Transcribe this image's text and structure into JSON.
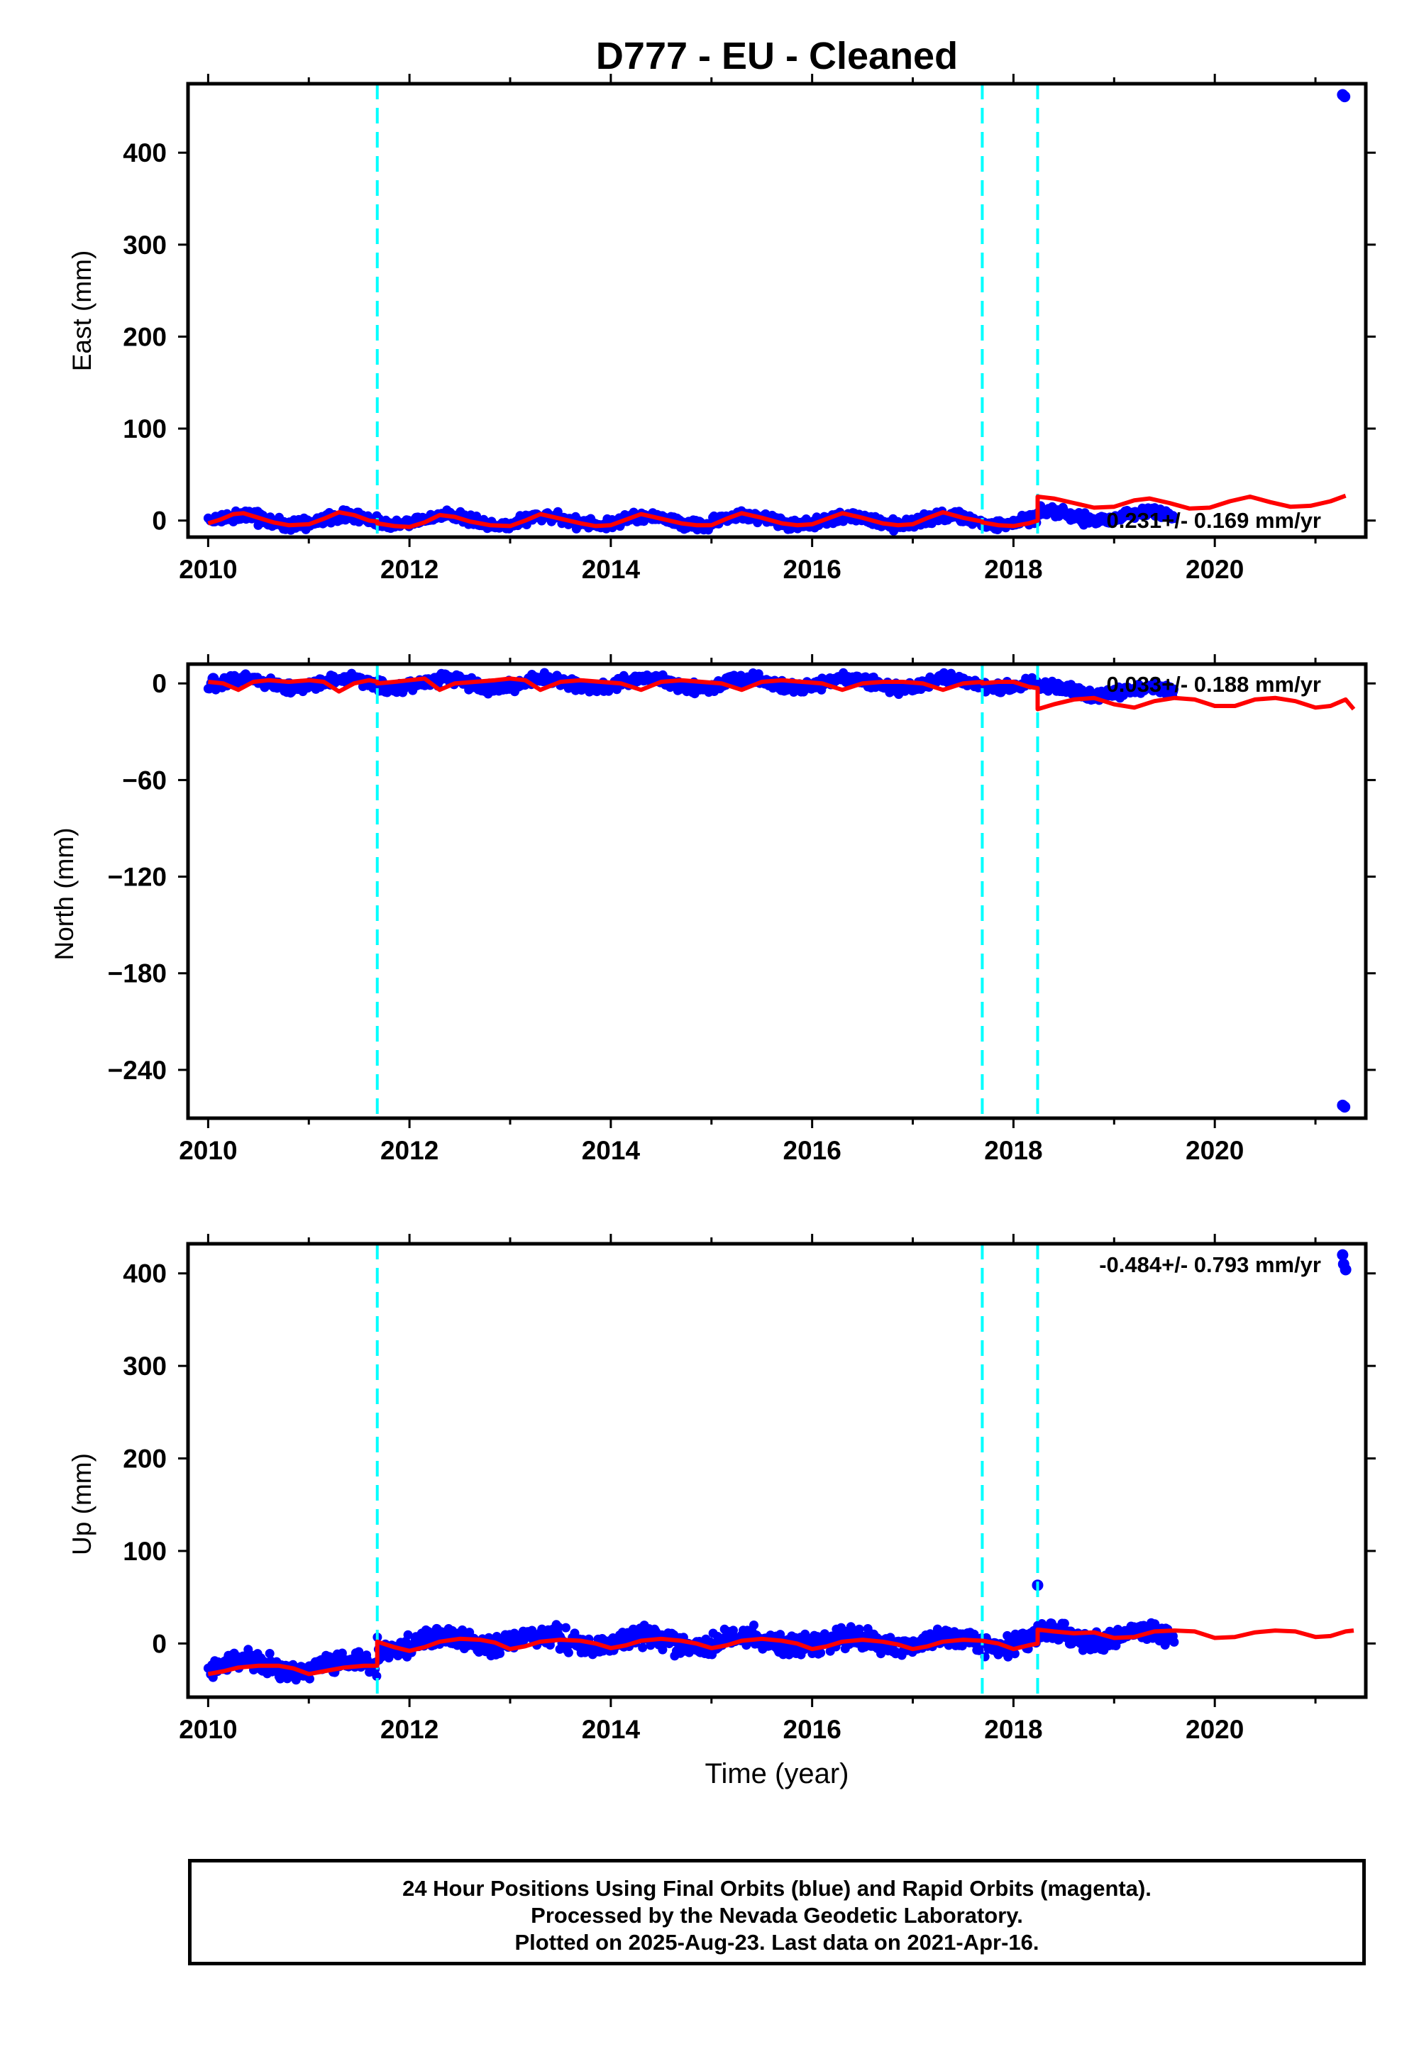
{
  "title": "D777  - EU - Cleaned",
  "xlabel": "Time (year)",
  "colors": {
    "data": "#0000ff",
    "model": "#ff0000",
    "offset": "#00ffff",
    "frame": "#000000"
  },
  "offset_epochs": [
    2011.68,
    2017.69,
    2018.24
  ],
  "chart_data": [
    {
      "type": "scatter",
      "name": "east",
      "ylabel": "East (mm)",
      "xlim": [
        2009.8,
        2021.5
      ],
      "ylim": [
        -18,
        475
      ],
      "xticks": [
        2010,
        2012,
        2014,
        2016,
        2018,
        2020
      ],
      "yticks": [
        0,
        100,
        200,
        300,
        400
      ],
      "velocity_text": "0.231+/- 0.169 mm/yr",
      "model_points": [
        [
          2010.0,
          -3
        ],
        [
          2010.12,
          1
        ],
        [
          2010.25,
          7
        ],
        [
          2010.35,
          8
        ],
        [
          2010.5,
          3
        ],
        [
          2010.65,
          -2
        ],
        [
          2010.8,
          -5
        ],
        [
          2011.0,
          -4
        ],
        [
          2011.15,
          2
        ],
        [
          2011.3,
          9
        ],
        [
          2011.45,
          6
        ],
        [
          2011.6,
          0
        ],
        [
          2011.68,
          -1
        ],
        [
          2011.68,
          -3
        ],
        [
          2011.85,
          -6
        ],
        [
          2012.0,
          -7
        ],
        [
          2012.15,
          -2
        ],
        [
          2012.3,
          6
        ],
        [
          2012.45,
          4
        ],
        [
          2012.6,
          -1
        ],
        [
          2012.8,
          -5
        ],
        [
          2013.0,
          -6
        ],
        [
          2013.15,
          0
        ],
        [
          2013.3,
          7
        ],
        [
          2013.5,
          2
        ],
        [
          2013.7,
          -3
        ],
        [
          2013.85,
          -6
        ],
        [
          2014.0,
          -5
        ],
        [
          2014.15,
          1
        ],
        [
          2014.3,
          7
        ],
        [
          2014.5,
          2
        ],
        [
          2014.7,
          -3
        ],
        [
          2014.85,
          -5
        ],
        [
          2015.0,
          -5
        ],
        [
          2015.15,
          2
        ],
        [
          2015.3,
          8
        ],
        [
          2015.5,
          3
        ],
        [
          2015.7,
          -3
        ],
        [
          2015.85,
          -5
        ],
        [
          2016.0,
          -4
        ],
        [
          2016.15,
          2
        ],
        [
          2016.3,
          8
        ],
        [
          2016.5,
          3
        ],
        [
          2016.7,
          -3
        ],
        [
          2016.85,
          -5
        ],
        [
          2017.0,
          -4
        ],
        [
          2017.15,
          3
        ],
        [
          2017.3,
          9
        ],
        [
          2017.5,
          3
        ],
        [
          2017.69,
          -1
        ],
        [
          2017.69,
          -2
        ],
        [
          2017.85,
          -5
        ],
        [
          2018.0,
          -6
        ],
        [
          2018.15,
          -3
        ],
        [
          2018.24,
          0
        ],
        [
          2018.24,
          26
        ],
        [
          2018.4,
          24
        ],
        [
          2018.6,
          19
        ],
        [
          2018.8,
          14
        ],
        [
          2019.0,
          15
        ],
        [
          2019.2,
          22
        ],
        [
          2019.35,
          24
        ],
        [
          2019.55,
          19
        ],
        [
          2019.75,
          13
        ],
        [
          2019.95,
          14
        ],
        [
          2020.15,
          21
        ],
        [
          2020.35,
          26
        ],
        [
          2020.55,
          20
        ],
        [
          2020.75,
          15
        ],
        [
          2020.95,
          16
        ],
        [
          2021.15,
          21
        ],
        [
          2021.3,
          27
        ]
      ],
      "data_band": {
        "x": [
          2010.0,
          2019.6
        ],
        "offset_mm": [
          [
            2011.68,
            0
          ],
          [
            2018.24,
            5
          ]
        ],
        "spread_mm": 7,
        "seasonal_amp_mm": 5
      },
      "outliers": [
        [
          2021.27,
          463
        ],
        [
          2021.29,
          461
        ]
      ]
    },
    {
      "type": "scatter",
      "name": "north",
      "ylabel": "North (mm)",
      "xlim": [
        2009.8,
        2021.5
      ],
      "ylim": [
        -270,
        12
      ],
      "xticks": [
        2010,
        2012,
        2014,
        2016,
        2018,
        2020
      ],
      "yticks": [
        0,
        -60,
        -120,
        -180,
        -240
      ],
      "ytick_labels": [
        "0",
        "−60",
        "−120",
        "−180",
        "−240"
      ],
      "velocity_text": "0.033+/- 0.188 mm/yr",
      "model_points": [
        [
          2010.0,
          1
        ],
        [
          2010.15,
          0
        ],
        [
          2010.3,
          -4
        ],
        [
          2010.45,
          1
        ],
        [
          2010.6,
          2
        ],
        [
          2010.8,
          1
        ],
        [
          2011.0,
          2
        ],
        [
          2011.15,
          1
        ],
        [
          2011.3,
          -5
        ],
        [
          2011.45,
          0
        ],
        [
          2011.6,
          2
        ],
        [
          2011.68,
          1
        ],
        [
          2011.68,
          0
        ],
        [
          2011.85,
          1
        ],
        [
          2012.0,
          2
        ],
        [
          2012.15,
          3
        ],
        [
          2012.3,
          -4
        ],
        [
          2012.45,
          0
        ],
        [
          2012.65,
          1
        ],
        [
          2012.85,
          2
        ],
        [
          2013.0,
          3
        ],
        [
          2013.15,
          2
        ],
        [
          2013.3,
          -4
        ],
        [
          2013.5,
          1
        ],
        [
          2013.7,
          2
        ],
        [
          2013.9,
          1
        ],
        [
          2014.1,
          0
        ],
        [
          2014.3,
          -4
        ],
        [
          2014.5,
          1
        ],
        [
          2014.7,
          2
        ],
        [
          2014.9,
          1
        ],
        [
          2015.1,
          0
        ],
        [
          2015.3,
          -4
        ],
        [
          2015.5,
          1
        ],
        [
          2015.7,
          2
        ],
        [
          2015.9,
          1
        ],
        [
          2016.1,
          0
        ],
        [
          2016.3,
          -4
        ],
        [
          2016.5,
          0
        ],
        [
          2016.7,
          1
        ],
        [
          2016.9,
          1
        ],
        [
          2017.1,
          0
        ],
        [
          2017.3,
          -4
        ],
        [
          2017.5,
          0
        ],
        [
          2017.69,
          1
        ],
        [
          2017.69,
          0
        ],
        [
          2017.85,
          1
        ],
        [
          2018.0,
          1
        ],
        [
          2018.15,
          -2
        ],
        [
          2018.24,
          -3
        ],
        [
          2018.24,
          -16
        ],
        [
          2018.4,
          -13
        ],
        [
          2018.6,
          -10
        ],
        [
          2018.8,
          -9
        ],
        [
          2019.0,
          -13
        ],
        [
          2019.2,
          -15
        ],
        [
          2019.4,
          -11
        ],
        [
          2019.6,
          -9
        ],
        [
          2019.8,
          -10
        ],
        [
          2020.0,
          -14
        ],
        [
          2020.2,
          -14
        ],
        [
          2020.4,
          -10
        ],
        [
          2020.6,
          -9
        ],
        [
          2020.8,
          -11
        ],
        [
          2021.0,
          -15
        ],
        [
          2021.15,
          -14
        ],
        [
          2021.3,
          -10
        ],
        [
          2021.38,
          -16
        ]
      ],
      "data_band": {
        "x": [
          2010.0,
          2019.6
        ],
        "offset_mm": [
          [
            2011.68,
            0
          ],
          [
            2018.24,
            -5
          ]
        ],
        "spread_mm": 4,
        "seasonal_amp_mm": 3
      },
      "outliers": [
        [
          2010.05,
          3
        ],
        [
          2016.85,
          -5
        ],
        [
          2021.27,
          -262
        ],
        [
          2021.29,
          -263
        ]
      ]
    },
    {
      "type": "scatter",
      "name": "up",
      "ylabel": "Up (mm)",
      "xlim": [
        2009.8,
        2021.5
      ],
      "ylim": [
        -58,
        432
      ],
      "xticks": [
        2010,
        2012,
        2014,
        2016,
        2018,
        2020
      ],
      "xtick_labels": [
        "2010",
        "2012",
        "2014",
        "2016",
        "2018",
        "2020"
      ],
      "yticks": [
        0,
        100,
        200,
        300,
        400
      ],
      "velocity_text": "-0.484+/- 0.793 mm/yr",
      "model_points": [
        [
          2010.0,
          -33
        ],
        [
          2010.15,
          -30
        ],
        [
          2010.3,
          -26
        ],
        [
          2010.5,
          -24
        ],
        [
          2010.7,
          -24
        ],
        [
          2010.85,
          -27
        ],
        [
          2011.0,
          -33
        ],
        [
          2011.15,
          -30
        ],
        [
          2011.35,
          -26
        ],
        [
          2011.55,
          -24
        ],
        [
          2011.68,
          -24
        ],
        [
          2011.68,
          2
        ],
        [
          2011.85,
          -4
        ],
        [
          2012.0,
          -8
        ],
        [
          2012.15,
          -4
        ],
        [
          2012.3,
          2
        ],
        [
          2012.5,
          5
        ],
        [
          2012.7,
          4
        ],
        [
          2012.85,
          1
        ],
        [
          2013.0,
          -6
        ],
        [
          2013.15,
          -3
        ],
        [
          2013.3,
          2
        ],
        [
          2013.5,
          4
        ],
        [
          2013.7,
          3
        ],
        [
          2013.85,
          0
        ],
        [
          2014.0,
          -5
        ],
        [
          2014.15,
          -2
        ],
        [
          2014.3,
          3
        ],
        [
          2014.5,
          5
        ],
        [
          2014.7,
          3
        ],
        [
          2014.85,
          0
        ],
        [
          2015.0,
          -5
        ],
        [
          2015.15,
          -2
        ],
        [
          2015.3,
          3
        ],
        [
          2015.5,
          5
        ],
        [
          2015.7,
          3
        ],
        [
          2015.85,
          0
        ],
        [
          2016.0,
          -6
        ],
        [
          2016.15,
          -3
        ],
        [
          2016.3,
          2
        ],
        [
          2016.5,
          4
        ],
        [
          2016.7,
          2
        ],
        [
          2016.85,
          -1
        ],
        [
          2017.0,
          -6
        ],
        [
          2017.15,
          -3
        ],
        [
          2017.3,
          2
        ],
        [
          2017.5,
          4
        ],
        [
          2017.69,
          3
        ],
        [
          2017.69,
          3
        ],
        [
          2017.85,
          0
        ],
        [
          2018.0,
          -6
        ],
        [
          2018.15,
          -2
        ],
        [
          2018.24,
          0
        ],
        [
          2018.24,
          15
        ],
        [
          2018.4,
          13
        ],
        [
          2018.6,
          11
        ],
        [
          2018.8,
          12
        ],
        [
          2019.0,
          6
        ],
        [
          2019.2,
          7
        ],
        [
          2019.4,
          13
        ],
        [
          2019.6,
          14
        ],
        [
          2019.8,
          13
        ],
        [
          2020.0,
          6
        ],
        [
          2020.2,
          7
        ],
        [
          2020.4,
          12
        ],
        [
          2020.6,
          14
        ],
        [
          2020.8,
          13
        ],
        [
          2021.0,
          7
        ],
        [
          2021.15,
          8
        ],
        [
          2021.3,
          13
        ],
        [
          2021.38,
          14
        ]
      ],
      "data_band": {
        "x": [
          2010.0,
          2019.6
        ],
        "offset_mm": [
          [
            2011.68,
            24
          ],
          [
            2018.24,
            8
          ]
        ],
        "spread_mm": 13,
        "seasonal_amp_mm": 6
      },
      "outliers": [
        [
          2018.24,
          63
        ],
        [
          2021.27,
          420
        ],
        [
          2021.28,
          410
        ],
        [
          2021.3,
          404
        ]
      ]
    }
  ],
  "footer": {
    "line1": "24 Hour Positions Using Final Orbits (blue) and Rapid Orbits (magenta).",
    "line2": "Processed by the Nevada Geodetic Laboratory.",
    "line3": "Plotted on 2025-Aug-23. Last data on 2021-Apr-16."
  }
}
